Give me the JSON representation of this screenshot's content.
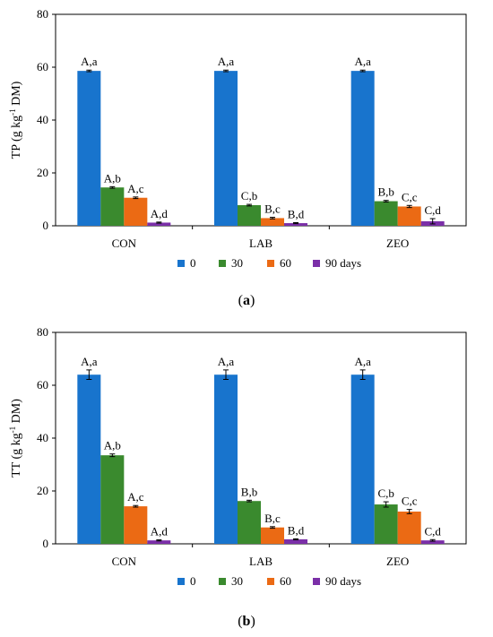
{
  "chart_data": [
    {
      "type": "bar",
      "panel_label": "a",
      "ylabel": "TP (g kg",
      "ylabel_sup": "-1",
      "ylabel_tail": " DM)",
      "ylim": [
        0,
        80
      ],
      "yticks": [
        0,
        20,
        40,
        60,
        80
      ],
      "categories": [
        "CON",
        "LAB",
        "ZEO"
      ],
      "series": [
        {
          "name": "0",
          "color": "#1874CD",
          "values": [
            58.6,
            58.6,
            58.6
          ],
          "errors": [
            0.3,
            0.3,
            0.3
          ],
          "labels": [
            "A,a",
            "A,a",
            "A,a"
          ]
        },
        {
          "name": "30",
          "color": "#3A8A2E",
          "values": [
            14.5,
            7.8,
            9.3
          ],
          "errors": [
            0.3,
            0.3,
            0.3
          ],
          "labels": [
            "A,b",
            "C,b",
            "B,b"
          ]
        },
        {
          "name": "60",
          "color": "#EB6A14",
          "values": [
            10.6,
            2.9,
            7.3
          ],
          "errors": [
            0.3,
            0.3,
            0.4
          ],
          "labels": [
            "A,c",
            "B,c",
            "C,c"
          ]
        },
        {
          "name": "90 days",
          "color": "#7B2FA8",
          "values": [
            1.2,
            1.0,
            1.7
          ],
          "errors": [
            0.2,
            0.2,
            1.0
          ],
          "labels": [
            "A,d",
            "B,d",
            "C,d"
          ]
        }
      ],
      "legend": [
        "0",
        "30",
        "60",
        "90 days"
      ],
      "legend_position": "bottom"
    },
    {
      "type": "bar",
      "panel_label": "b",
      "ylabel": "TT (g kg",
      "ylabel_sup": "-1",
      "ylabel_tail": " DM)",
      "ylim": [
        0,
        80
      ],
      "yticks": [
        0,
        20,
        40,
        60,
        80
      ],
      "categories": [
        "CON",
        "LAB",
        "ZEO"
      ],
      "series": [
        {
          "name": "0",
          "color": "#1874CD",
          "values": [
            64.0,
            64.0,
            64.0
          ],
          "errors": [
            1.8,
            1.8,
            1.8
          ],
          "labels": [
            "A,a",
            "A,a",
            "A,a"
          ]
        },
        {
          "name": "30",
          "color": "#3A8A2E",
          "values": [
            33.5,
            16.2,
            14.9
          ],
          "errors": [
            0.5,
            0.3,
            1.0
          ],
          "labels": [
            "A,b",
            "B,b",
            "C,b"
          ]
        },
        {
          "name": "60",
          "color": "#EB6A14",
          "values": [
            14.2,
            6.2,
            12.2
          ],
          "errors": [
            0.3,
            0.3,
            0.8
          ],
          "labels": [
            "A,c",
            "B,c",
            "C,c"
          ]
        },
        {
          "name": "90 days",
          "color": "#7B2FA8",
          "values": [
            1.3,
            1.7,
            1.3
          ],
          "errors": [
            0.2,
            0.2,
            0.3
          ],
          "labels": [
            "A,d",
            "B,d",
            "C,d"
          ]
        }
      ],
      "legend": [
        "0",
        "30",
        "60",
        "90 days"
      ],
      "legend_position": "bottom"
    }
  ]
}
